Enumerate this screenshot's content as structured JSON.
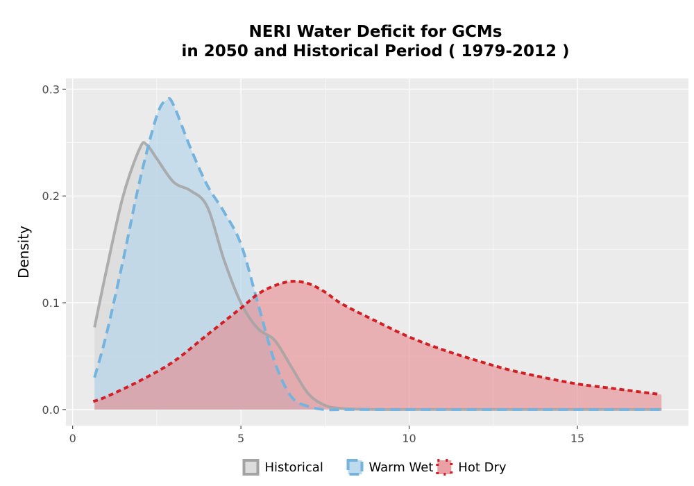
{
  "chart_data": {
    "type": "area",
    "title_line1": "NERI  Water Deficit for GCMs",
    "title_line2": "in 2050 and Historical Period ( 1979-2012 )",
    "xlabel": "",
    "ylabel": "Density",
    "xlim": [
      -0.2,
      18.3
    ],
    "ylim": [
      -0.015,
      0.31
    ],
    "x_ticks": [
      0,
      5,
      10,
      15
    ],
    "x_tick_labels": [
      "0",
      "5",
      "10",
      "15"
    ],
    "y_ticks": [
      0.0,
      0.1,
      0.2,
      0.3
    ],
    "y_tick_labels": [
      "0.0",
      "0.1",
      "0.2",
      "0.3"
    ],
    "grid": true,
    "legend_position": "bottom",
    "series": [
      {
        "name": "Historical",
        "line_color": "#a3a3a3",
        "fill_color": "#d9d9d9",
        "fill_opacity": 0.7,
        "dash": "solid",
        "x": [
          0.65,
          1.0,
          1.5,
          2.0,
          2.2,
          2.5,
          3.0,
          3.5,
          4.0,
          4.5,
          5.0,
          5.5,
          6.0,
          6.5,
          7.0,
          7.5,
          8.0,
          9.0,
          10.0,
          12.0,
          14.0,
          17.5
        ],
        "y": [
          0.077,
          0.13,
          0.2,
          0.245,
          0.248,
          0.235,
          0.213,
          0.205,
          0.19,
          0.14,
          0.1,
          0.076,
          0.065,
          0.04,
          0.015,
          0.004,
          0.001,
          0.0,
          0.0,
          0.0,
          0.0,
          0.0
        ]
      },
      {
        "name": "Warm Wet",
        "line_color": "#74b3de",
        "fill_color": "#b3d4ea",
        "fill_opacity": 0.65,
        "dash": "dashed",
        "x": [
          0.65,
          1.0,
          1.5,
          2.0,
          2.5,
          2.8,
          3.0,
          3.5,
          4.0,
          4.5,
          5.0,
          5.5,
          6.0,
          6.5,
          7.0,
          7.5,
          8.0,
          9.0,
          10.0,
          12.0,
          14.0,
          17.5
        ],
        "y": [
          0.03,
          0.07,
          0.14,
          0.215,
          0.275,
          0.29,
          0.285,
          0.245,
          0.21,
          0.185,
          0.155,
          0.1,
          0.045,
          0.012,
          0.003,
          0.0,
          0.0,
          0.0,
          0.0,
          0.0,
          0.0,
          0.0
        ]
      },
      {
        "name": "Hot Dry",
        "line_color": "#d11f24",
        "fill_color": "#e6888e",
        "fill_opacity": 0.6,
        "dash": "dotted",
        "x": [
          0.65,
          1.0,
          2.0,
          3.0,
          4.0,
          5.0,
          5.5,
          6.0,
          6.5,
          7.0,
          7.5,
          8.0,
          9.0,
          10.0,
          11.0,
          12.0,
          13.0,
          14.0,
          15.0,
          16.0,
          17.5
        ],
        "y": [
          0.008,
          0.012,
          0.027,
          0.045,
          0.07,
          0.095,
          0.108,
          0.116,
          0.12,
          0.118,
          0.11,
          0.099,
          0.083,
          0.068,
          0.056,
          0.046,
          0.037,
          0.03,
          0.024,
          0.02,
          0.014
        ]
      }
    ]
  }
}
